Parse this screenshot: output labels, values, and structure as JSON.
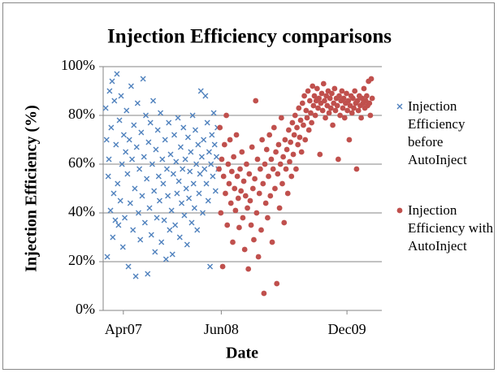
{
  "chart_data": {
    "type": "scatter",
    "title": "Injection Efficiency comparisons",
    "x_label": "Date",
    "y_label": "Injection Efficiency (%)",
    "xlim": [
      39085,
      40300
    ],
    "xticks": [
      {
        "value": 39173,
        "label": "Apr07"
      },
      {
        "value": 39600,
        "label": "Jun08"
      },
      {
        "value": 40148,
        "label": "Dec09"
      }
    ],
    "ylim": [
      0,
      100
    ],
    "yticks": [
      {
        "value": 0,
        "label": "0%"
      },
      {
        "value": 20,
        "label": "20%"
      },
      {
        "value": 40,
        "label": "40%"
      },
      {
        "value": 60,
        "label": "60%"
      },
      {
        "value": 80,
        "label": "80%"
      },
      {
        "value": 100,
        "label": "100%"
      }
    ],
    "grid": true,
    "legend": "right",
    "series": [
      {
        "name": "Injection Efficiency before AutoInject",
        "color": "#4f81bd",
        "marker": "x",
        "x": [
          39096,
          39100,
          39103,
          39107,
          39110,
          39113,
          39117,
          39120,
          39124,
          39127,
          39131,
          39134,
          39138,
          39141,
          39145,
          39148,
          39152,
          39156,
          39160,
          39163,
          39167,
          39171,
          39175,
          39179,
          39183,
          39187,
          39191,
          39195,
          39199,
          39203,
          39207,
          39211,
          39215,
          39219,
          39223,
          39227,
          39231,
          39235,
          39239,
          39243,
          39247,
          39251,
          39255,
          39259,
          39263,
          39267,
          39271,
          39275,
          39279,
          39283,
          39287,
          39291,
          39295,
          39299,
          39303,
          39307,
          39311,
          39315,
          39319,
          39323,
          39327,
          39331,
          39335,
          39339,
          39343,
          39347,
          39351,
          39355,
          39359,
          39363,
          39367,
          39371,
          39375,
          39379,
          39383,
          39387,
          39391,
          39395,
          39399,
          39403,
          39407,
          39411,
          39415,
          39419,
          39423,
          39427,
          39431,
          39435,
          39439,
          39443,
          39447,
          39451,
          39455,
          39459,
          39463,
          39467,
          39471,
          39475,
          39479,
          39483,
          39487,
          39491,
          39495,
          39499,
          39503,
          39507,
          39511,
          39515,
          39519,
          39523,
          39527,
          39531,
          39535,
          39539,
          39543,
          39547,
          39551,
          39555,
          39559,
          39563,
          39567,
          39571,
          39575,
          39579,
          39583,
          39587
        ],
        "values": [
          83,
          70,
          22,
          55,
          62,
          90,
          41,
          75,
          94,
          30,
          48,
          86,
          37,
          68,
          97,
          52,
          35,
          78,
          45,
          88,
          60,
          26,
          72,
          38,
          65,
          82,
          56,
          18,
          70,
          44,
          92,
          62,
          33,
          76,
          50,
          14,
          67,
          85,
          40,
          58,
          29,
          73,
          47,
          95,
          63,
          36,
          80,
          54,
          15,
          69,
          42,
          77,
          31,
          60,
          86,
          49,
          24,
          66,
          38,
          74,
          55,
          45,
          81,
          28,
          62,
          52,
          37,
          70,
          21,
          58,
          47,
          77,
          33,
          64,
          41,
          23,
          56,
          72,
          35,
          61,
          48,
          79,
          53,
          30,
          67,
          44,
          58,
          75,
          39,
          62,
          50,
          27,
          71,
          46,
          57,
          65,
          36,
          80,
          52,
          42,
          74,
          60,
          33,
          68,
          48,
          56,
          90,
          63,
          40,
          70,
          58,
          88,
          52,
          77,
          45,
          65,
          18,
          60,
          72,
          55,
          81,
          68,
          49,
          63,
          75,
          58
        ]
      },
      {
        "name": "Injection Efficiency with AutoInject",
        "color": "#c0504d",
        "marker": "circle",
        "x": [
          39590,
          39594,
          39598,
          39602,
          39606,
          39610,
          39614,
          39618,
          39622,
          39626,
          39630,
          39634,
          39638,
          39642,
          39646,
          39650,
          39654,
          39658,
          39662,
          39666,
          39670,
          39674,
          39678,
          39682,
          39686,
          39690,
          39694,
          39698,
          39702,
          39706,
          39710,
          39714,
          39718,
          39722,
          39726,
          39730,
          39734,
          39738,
          39742,
          39746,
          39750,
          39754,
          39758,
          39762,
          39766,
          39770,
          39774,
          39778,
          39782,
          39786,
          39790,
          39794,
          39798,
          39802,
          39806,
          39810,
          39814,
          39818,
          39822,
          39826,
          39830,
          39834,
          39838,
          39842,
          39846,
          39850,
          39854,
          39858,
          39862,
          39866,
          39870,
          39874,
          39878,
          39882,
          39886,
          39890,
          39894,
          39898,
          39902,
          39906,
          39910,
          39914,
          39918,
          39922,
          39926,
          39930,
          39934,
          39938,
          39942,
          39946,
          39950,
          39954,
          39958,
          39962,
          39966,
          39970,
          39974,
          39978,
          39982,
          39986,
          39990,
          39994,
          39998,
          40002,
          40006,
          40010,
          40014,
          40018,
          40022,
          40026,
          40030,
          40034,
          40038,
          40042,
          40046,
          40050,
          40054,
          40058,
          40062,
          40066,
          40070,
          40074,
          40078,
          40082,
          40086,
          40090,
          40094,
          40098,
          40102,
          40106,
          40110,
          40114,
          40118,
          40122,
          40126,
          40130,
          40134,
          40138,
          40142,
          40146,
          40150,
          40154,
          40158,
          40162,
          40166,
          40170,
          40174,
          40178,
          40182,
          40186,
          40190,
          40194,
          40198,
          40202,
          40206,
          40210,
          40214,
          40218,
          40222,
          40226,
          40230,
          40234,
          40238,
          40242,
          40246,
          40250,
          40254,
          40258
        ],
        "values": [
          58,
          75,
          40,
          62,
          18,
          55,
          68,
          48,
          80,
          35,
          60,
          52,
          70,
          44,
          57,
          28,
          63,
          50,
          41,
          72,
          55,
          46,
          34,
          58,
          49,
          65,
          38,
          53,
          25,
          47,
          60,
          42,
          17,
          56,
          45,
          35,
          67,
          50,
          29,
          54,
          86,
          40,
          62,
          22,
          48,
          58,
          33,
          70,
          52,
          7,
          60,
          44,
          66,
          38,
          55,
          72,
          47,
          62,
          28,
          58,
          75,
          50,
          65,
          11,
          56,
          68,
          42,
          60,
          79,
          52,
          63,
          36,
          70,
          58,
          66,
          48,
          74,
          61,
          69,
          55,
          77,
          64,
          72,
          80,
          58,
          75,
          68,
          83,
          71,
          78,
          65,
          85,
          76,
          88,
          70,
          82,
          79,
          90,
          74,
          86,
          81,
          77,
          92,
          84,
          88,
          80,
          86,
          91,
          83,
          87,
          64,
          85,
          89,
          82,
          93,
          86,
          79,
          88,
          84,
          90,
          81,
          87,
          83,
          89,
          76,
          85,
          91,
          82,
          87,
          84,
          62,
          88,
          80,
          86,
          90,
          83,
          87,
          79,
          85,
          89,
          82,
          86,
          70,
          84,
          88,
          81,
          87,
          83,
          90,
          85,
          58,
          86,
          82,
          88,
          84,
          79,
          87,
          85,
          91,
          83,
          86,
          88,
          84,
          94,
          85,
          80,
          95,
          87
        ]
      }
    ]
  }
}
